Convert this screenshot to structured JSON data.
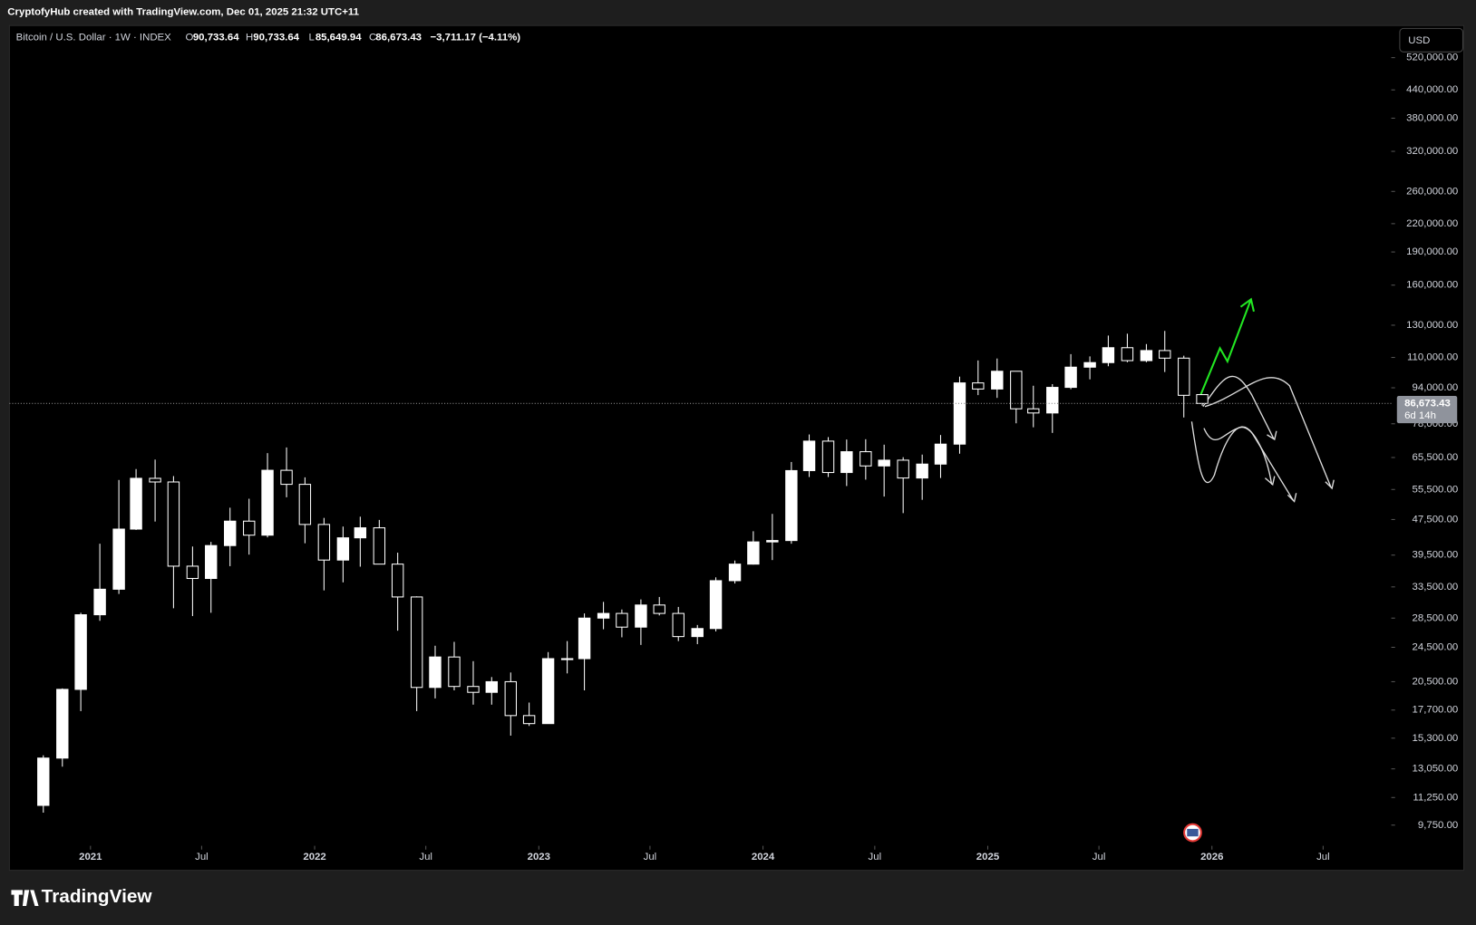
{
  "header": {
    "credit": "CryptofyHub created with TradingView.com, Dec 01, 2025 21:32 UTC+11",
    "symbol": "Bitcoin / U.S. Dollar · 1W · INDEX",
    "o_label": "O",
    "o": "90,733.64",
    "h_label": "H",
    "h": "90,733.64",
    "l_label": "L",
    "l": "85,649.94",
    "c_label": "C",
    "c": "86,673.43",
    "change": "−3,711.17 (−4.11%)",
    "currency": "USD"
  },
  "footer": {
    "logo": "TradingView"
  },
  "chart_data": {
    "type": "candlestick",
    "log_scale": true,
    "up_color": "#ffffff",
    "down_color": "#ffffff",
    "x": [
      "2020-10",
      "2020-11",
      "2020-12",
      "2021-01",
      "2021-02",
      "2021-03",
      "2021-04",
      "2021-05",
      "2021-06",
      "2021-07",
      "2021-08",
      "2021-09",
      "2021-10",
      "2021-11",
      "2021-12",
      "2022-01",
      "2022-02",
      "2022-03",
      "2022-04",
      "2022-05",
      "2022-06",
      "2022-07",
      "2022-08",
      "2022-09",
      "2022-10",
      "2022-11",
      "2022-12",
      "2023-01",
      "2023-02",
      "2023-03",
      "2023-04",
      "2023-05",
      "2023-06",
      "2023-07",
      "2023-08",
      "2023-09",
      "2023-10",
      "2023-11",
      "2023-12",
      "2024-01",
      "2024-02",
      "2024-03",
      "2024-04",
      "2024-05",
      "2024-06",
      "2024-07",
      "2024-08",
      "2024-09",
      "2024-10",
      "2024-11",
      "2024-12",
      "2025-01",
      "2025-02",
      "2025-03",
      "2025-04",
      "2025-05",
      "2025-06",
      "2025-07",
      "2025-08",
      "2025-09",
      "2025-10",
      "2025-11",
      "2025-12"
    ],
    "open": [
      10800,
      13800,
      19700,
      29000,
      33100,
      45200,
      58800,
      57700,
      37300,
      35000,
      41500,
      47100,
      43800,
      61300,
      57000,
      46300,
      38500,
      43200,
      45500,
      37700,
      31800,
      19900,
      23300,
      20000,
      19400,
      20500,
      17200,
      16500,
      23100,
      23100,
      28500,
      29200,
      27200,
      30500,
      29200,
      25900,
      27000,
      34600,
      37700,
      42300,
      42600,
      61200,
      71300,
      60600,
      67500,
      62700,
      64600,
      58900,
      63300,
      70200,
      96400,
      93400,
      102400,
      84300,
      82500,
      94200,
      104600,
      107100,
      115700,
      108200,
      114000,
      109600,
      90733.64
    ],
    "high": [
      14000,
      19800,
      29300,
      41900,
      58300,
      61700,
      64800,
      59500,
      41300,
      42300,
      50500,
      52900,
      67000,
      69000,
      59100,
      47900,
      45800,
      48200,
      47400,
      40000,
      31900,
      24700,
      25200,
      22800,
      21000,
      21500,
      18400,
      23900,
      25300,
      29200,
      31000,
      29800,
      31400,
      31800,
      30200,
      27500,
      35200,
      38400,
      44700,
      48900,
      64000,
      73800,
      72800,
      71900,
      72000,
      70000,
      65600,
      66500,
      73600,
      99600,
      108300,
      109400,
      102500,
      95000,
      95800,
      111900,
      110600,
      123200,
      124400,
      117900,
      126200,
      111000,
      90733.64
    ],
    "low": [
      10400,
      13200,
      17600,
      28100,
      32300,
      45000,
      47000,
      30000,
      28800,
      29300,
      37300,
      39600,
      43300,
      53300,
      42000,
      32900,
      34300,
      37200,
      37700,
      26700,
      17600,
      18800,
      19600,
      18200,
      18200,
      15500,
      16300,
      16500,
      21400,
      19600,
      26900,
      25800,
      24800,
      28900,
      25300,
      24900,
      26600,
      34100,
      37600,
      38500,
      41900,
      59200,
      59200,
      56500,
      58400,
      53500,
      49100,
      52600,
      58900,
      66800,
      90500,
      89200,
      78200,
      76600,
      74400,
      93300,
      98200,
      105100,
      107300,
      107300,
      102000,
      80600,
      85649.94
    ],
    "close": [
      13800,
      19700,
      29000,
      33100,
      45200,
      58800,
      57700,
      37300,
      35000,
      41500,
      47100,
      43800,
      61300,
      57000,
      46300,
      38500,
      43200,
      45500,
      37700,
      31800,
      19900,
      23300,
      20000,
      19400,
      20500,
      17200,
      16500,
      23100,
      23100,
      28500,
      29200,
      27200,
      30500,
      29200,
      25900,
      27000,
      34600,
      37700,
      42300,
      42600,
      61200,
      71300,
      60600,
      67500,
      62700,
      64600,
      58900,
      63300,
      70200,
      96400,
      93400,
      102400,
      84300,
      82500,
      94200,
      104600,
      107100,
      115700,
      108200,
      114000,
      109600,
      90400,
      86673.43
    ],
    "xlim": [
      "2020-08-22",
      "2026-10-20"
    ],
    "xticks": [
      {
        "value": "2021-01-01",
        "label": "2021"
      },
      {
        "value": "2021-07-01",
        "label": "Jul"
      },
      {
        "value": "2022-01-01",
        "label": "2022"
      },
      {
        "value": "2022-07-01",
        "label": "Jul"
      },
      {
        "value": "2023-01-01",
        "label": "2023"
      },
      {
        "value": "2023-07-01",
        "label": "Jul"
      },
      {
        "value": "2024-01-01",
        "label": "2024"
      },
      {
        "value": "2024-07-01",
        "label": "Jul"
      },
      {
        "value": "2025-01-01",
        "label": "2025"
      },
      {
        "value": "2025-07-01",
        "label": "Jul"
      },
      {
        "value": "2026-01-01",
        "label": "2026"
      },
      {
        "value": "2026-07-01",
        "label": "Jul"
      }
    ],
    "ylim": [
      8845,
      614000
    ],
    "yticks": [
      {
        "value": 520000,
        "label": "520,000.00"
      },
      {
        "value": 440000,
        "label": "440,000.00"
      },
      {
        "value": 380000,
        "label": "380,000.00"
      },
      {
        "value": 320000,
        "label": "320,000.00"
      },
      {
        "value": 260000,
        "label": "260,000.00"
      },
      {
        "value": 220000,
        "label": "220,000.00"
      },
      {
        "value": 190000,
        "label": "190,000.00"
      },
      {
        "value": 160000,
        "label": "160,000.00"
      },
      {
        "value": 130000,
        "label": "130,000.00"
      },
      {
        "value": 110000,
        "label": "110,000.00"
      },
      {
        "value": 94000,
        "label": "94,000.00"
      },
      {
        "value": 78000,
        "label": "78,000.00"
      },
      {
        "value": 65500,
        "label": "65,500.00"
      },
      {
        "value": 55500,
        "label": "55,500.00"
      },
      {
        "value": 47500,
        "label": "47,500.00"
      },
      {
        "value": 39500,
        "label": "39,500.00"
      },
      {
        "value": 33500,
        "label": "33,500.00"
      },
      {
        "value": 28500,
        "label": "28,500.00"
      },
      {
        "value": 24500,
        "label": "24,500.00"
      },
      {
        "value": 20500,
        "label": "20,500.00"
      },
      {
        "value": 17700,
        "label": "17,700.00"
      },
      {
        "value": 15300,
        "label": "15,300.00"
      },
      {
        "value": 13050,
        "label": "13,050.00"
      },
      {
        "value": 11250,
        "label": "11,250.00"
      },
      {
        "value": 9750,
        "label": "9,750.00"
      }
    ],
    "price_line": {
      "value": 86673.43,
      "label": "86,673.43",
      "countdown": "6d 14h"
    }
  }
}
